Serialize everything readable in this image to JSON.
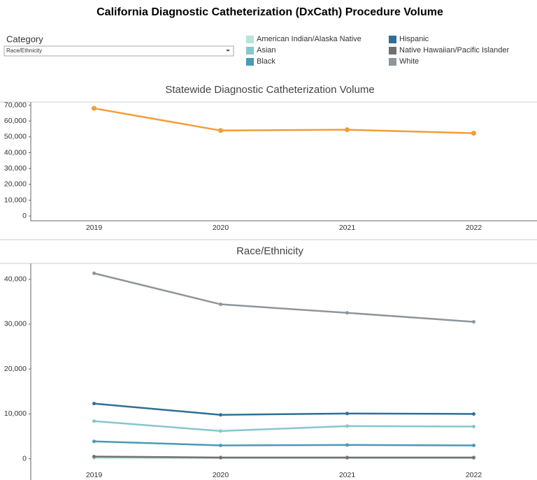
{
  "title": "California Diagnostic Catheterization (DxCath) Procedure Volume",
  "filter": {
    "label": "Category",
    "value": "Race/Ethnicity"
  },
  "chart_data": [
    {
      "type": "line",
      "title": "Statewide Diagnostic Catheterization Volume",
      "categories": [
        "2019",
        "2020",
        "2021",
        "2022"
      ],
      "values": [
        68000,
        54000,
        54500,
        52300
      ],
      "color": "#f39c39",
      "ylim": [
        -3000,
        72000
      ],
      "yticks": [
        0,
        {
          "value": 10000,
          "label": "10,000"
        },
        {
          "value": 20000,
          "label": "20,000"
        },
        {
          "value": 30000,
          "label": "30,000"
        },
        {
          "value": 40000,
          "label": "40,000"
        },
        {
          "value": 50000,
          "label": "50,000"
        },
        {
          "value": 60000,
          "label": "60,000"
        },
        {
          "value": 70000,
          "label": "70,000"
        }
      ]
    },
    {
      "type": "line",
      "title": "Race/Ethnicity",
      "categories": [
        "2019",
        "2020",
        "2021",
        "2022"
      ],
      "series": [
        {
          "name": "American Indian/Alaska Native",
          "color": "#b7e4d9",
          "values": [
            200,
            200,
            200,
            200
          ]
        },
        {
          "name": "Asian",
          "color": "#86c6cf",
          "values": [
            8400,
            6200,
            7300,
            7200
          ]
        },
        {
          "name": "Black",
          "color": "#4a9ab5",
          "values": [
            3900,
            3000,
            3100,
            3000
          ]
        },
        {
          "name": "Hispanic",
          "color": "#2f6f96",
          "values": [
            12300,
            9800,
            10100,
            10000
          ]
        },
        {
          "name": "Native Hawaiian/Pacific Islander",
          "color": "#707070",
          "values": [
            500,
            300,
            300,
            300
          ]
        },
        {
          "name": "White",
          "color": "#8e969c",
          "values": [
            41300,
            34400,
            32500,
            30500
          ]
        }
      ],
      "ylim": [
        -4700,
        43500
      ],
      "yticks": [
        0,
        {
          "value": 10000,
          "label": "10,000"
        },
        {
          "value": 20000,
          "label": "20,000"
        },
        {
          "value": 30000,
          "label": "30,000"
        },
        {
          "value": 40000,
          "label": "40,000"
        }
      ]
    }
  ]
}
